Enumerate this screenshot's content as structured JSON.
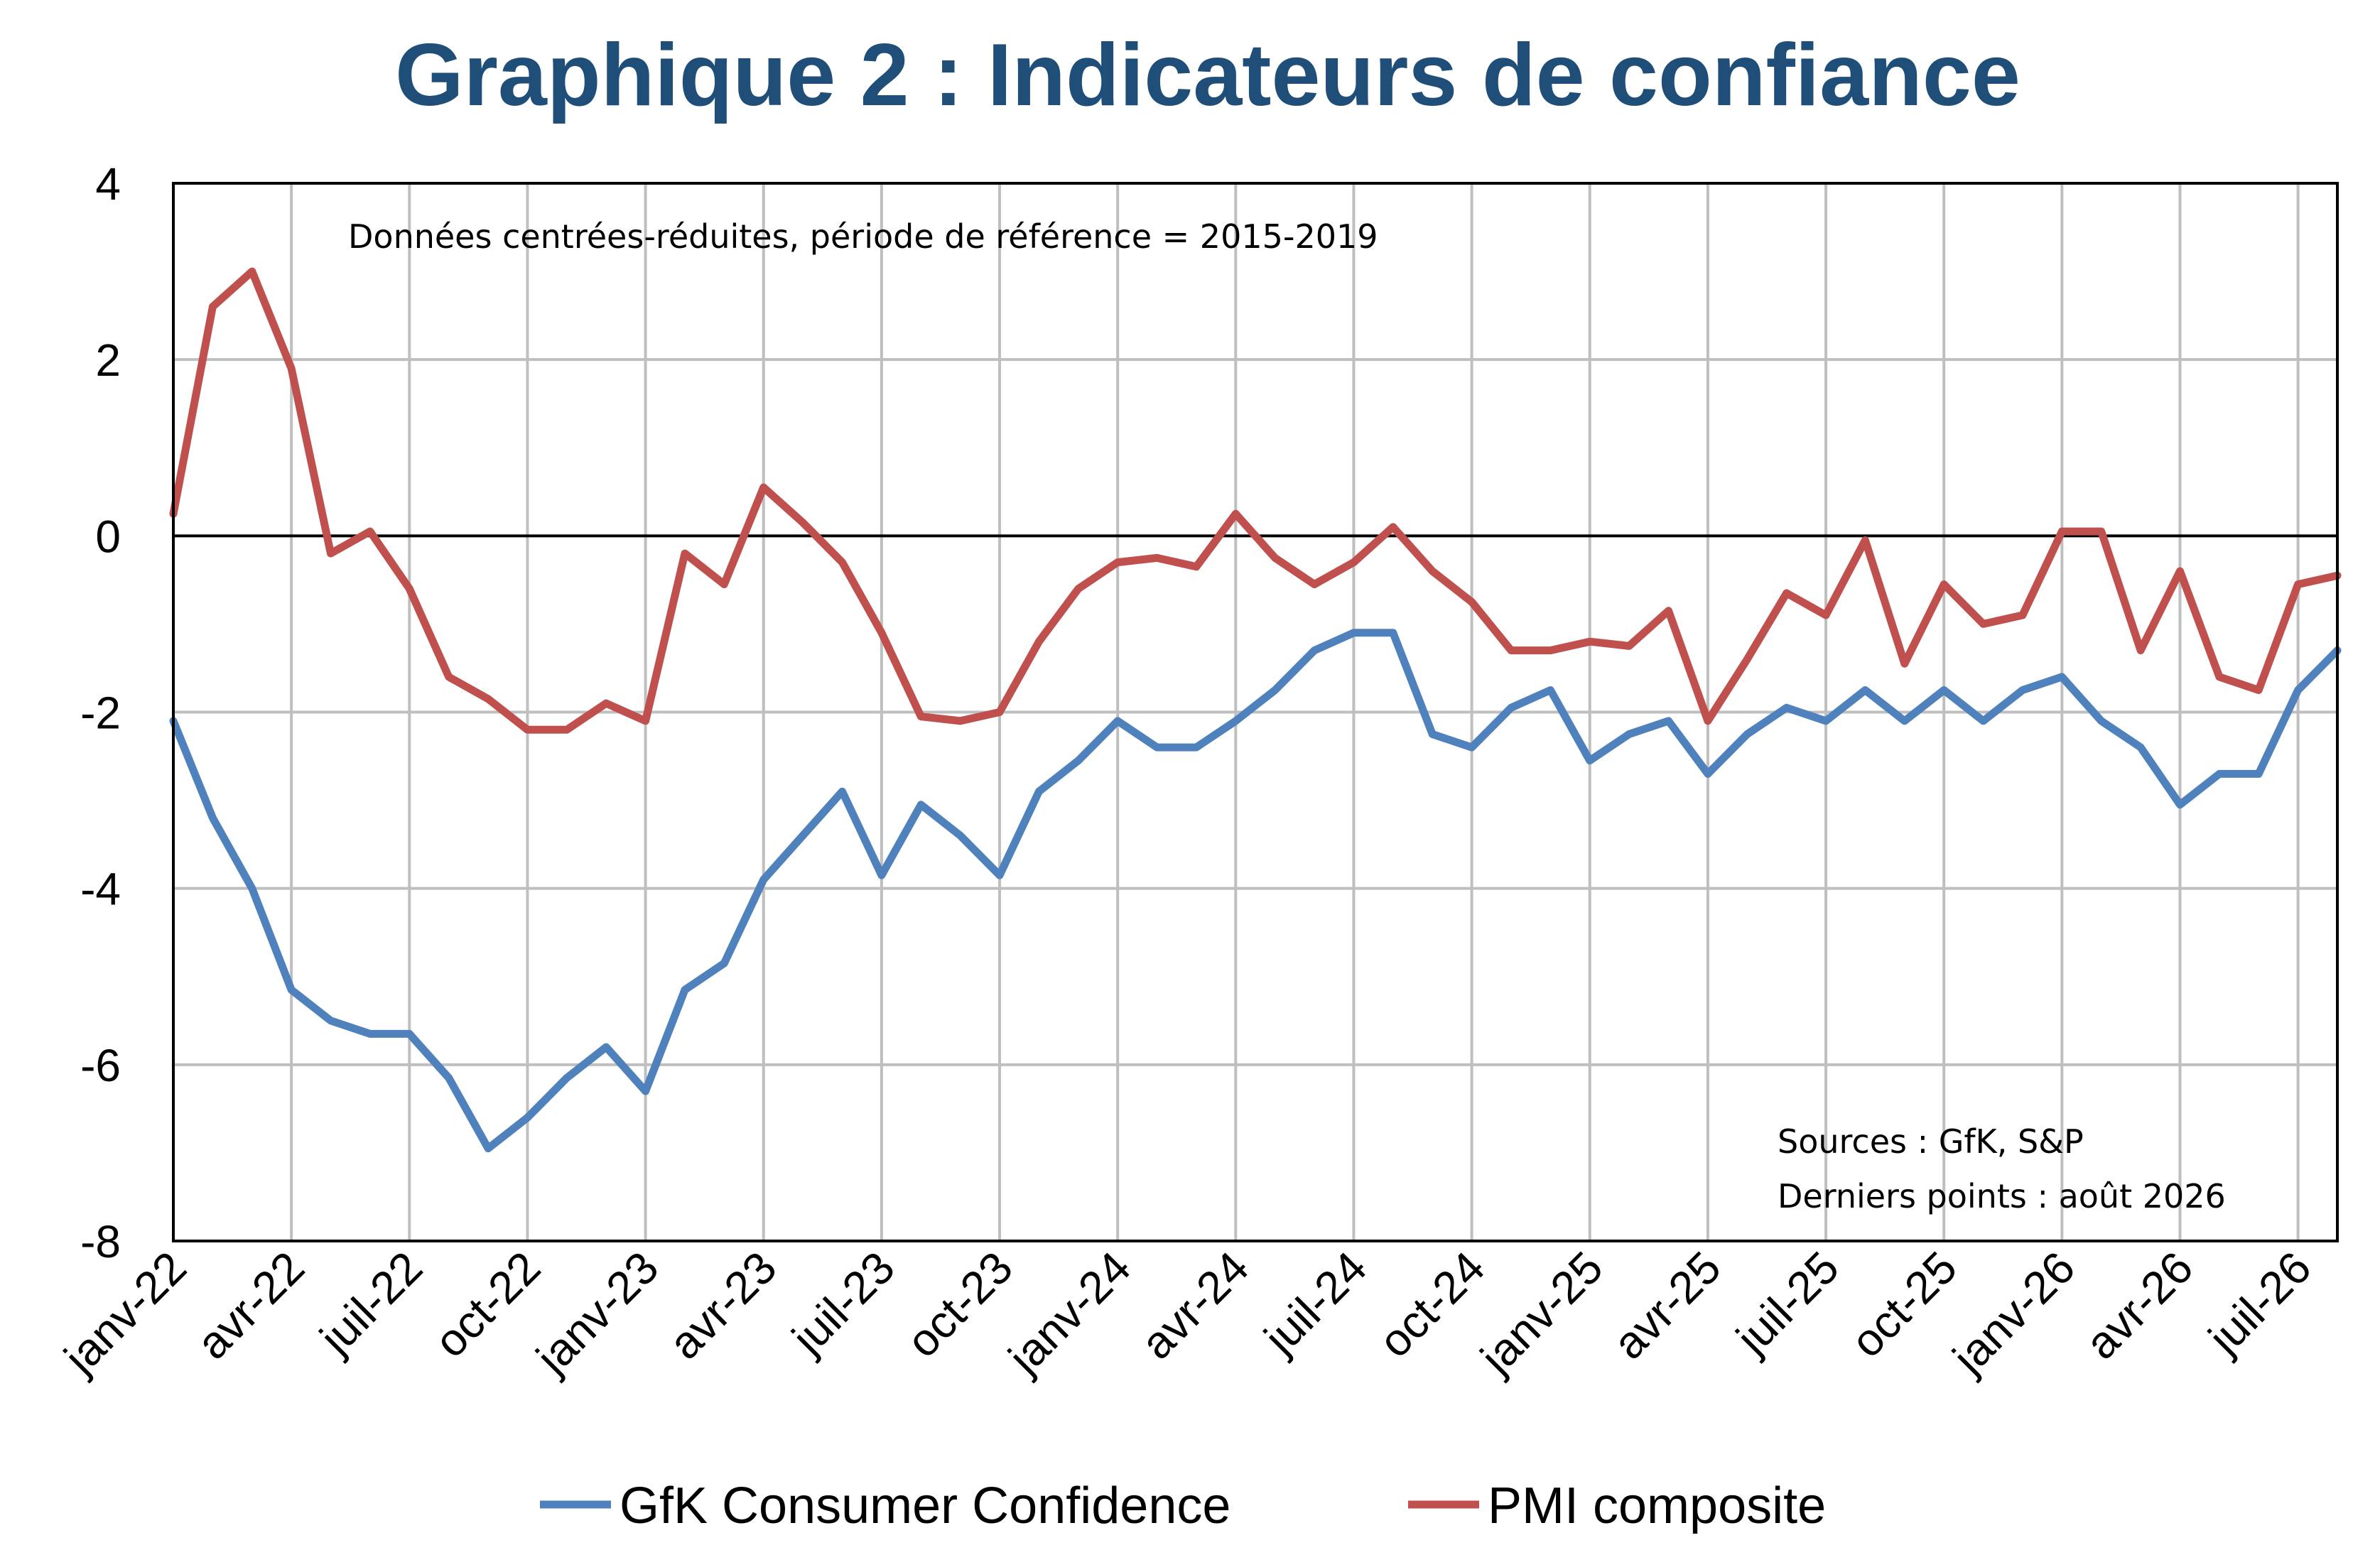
{
  "chart_data": {
    "type": "line",
    "title": "Graphique 2 : Indicateurs de confiance",
    "subtitle": "Données centrées-réduites, période de référence = 2015-2019",
    "sources": "Sources : GfK, S&P",
    "last_points": "Derniers points : août 2026",
    "xlabel": "",
    "ylabel": "",
    "ylim": [
      -8,
      4
    ],
    "yticks": [
      -8,
      -6,
      -4,
      -2,
      0,
      2,
      4
    ],
    "ytick_labels": [
      "-8",
      "-6",
      "-4",
      "-2",
      "0",
      "2",
      "4"
    ],
    "grid": true,
    "legend_position": "bottom",
    "tick_labels": [
      "janv-22",
      "avr-22",
      "juil-22",
      "oct-22",
      "janv-23",
      "avr-23",
      "juil-23",
      "oct-23",
      "janv-24",
      "avr-24",
      "juil-24",
      "oct-24",
      "janv-25",
      "avr-25",
      "juil-25",
      "oct-25",
      "janv-26",
      "avr-26",
      "juil-26"
    ],
    "categories": [
      "janv-22",
      "févr-22",
      "mars-22",
      "avr-22",
      "mai-22",
      "juin-22",
      "juil-22",
      "août-22",
      "sept-22",
      "oct-22",
      "nov-22",
      "déc-22",
      "janv-23",
      "févr-23",
      "mars-23",
      "avr-23",
      "mai-23",
      "juin-23",
      "juil-23",
      "août-23",
      "sept-23",
      "oct-23",
      "nov-23",
      "déc-23",
      "janv-24",
      "févr-24",
      "mars-24",
      "avr-24",
      "mai-24",
      "juin-24",
      "juil-24",
      "août-24",
      "sept-24",
      "oct-24",
      "nov-24",
      "déc-24",
      "janv-25",
      "févr-25",
      "mars-25",
      "avr-25",
      "mai-25",
      "juin-25",
      "juil-25",
      "août-25",
      "sept-25",
      "oct-25",
      "nov-25",
      "déc-25",
      "janv-26",
      "févr-26",
      "mars-26",
      "avr-26",
      "mai-26",
      "juin-26",
      "juil-26",
      "août-26"
    ],
    "series": [
      {
        "name": "GfK Consumer Confidence",
        "color": "#4F81BD",
        "values": [
          -2.1,
          -3.2,
          -4.0,
          -5.15,
          -5.5,
          -5.65,
          -5.65,
          -6.15,
          -6.95,
          -6.6,
          -6.15,
          -5.8,
          -6.3,
          -5.15,
          -4.85,
          -3.9,
          -3.4,
          -2.9,
          -3.85,
          -3.05,
          -3.4,
          -3.85,
          -2.9,
          -2.55,
          -2.1,
          -2.4,
          -2.4,
          -2.1,
          -1.75,
          -1.3,
          -1.1,
          -1.1,
          -2.25,
          -2.4,
          -1.95,
          -1.75,
          -2.55,
          -2.25,
          -2.1,
          -2.7,
          -2.25,
          -1.95,
          -2.1,
          -1.75,
          -2.1,
          -1.75,
          -2.1,
          -1.75,
          -1.6,
          -2.1,
          -2.4,
          -3.05,
          -2.7,
          -2.7,
          -1.75,
          -1.3
        ]
      },
      {
        "name": "PMI composite",
        "color": "#C0504D",
        "values": [
          0.25,
          2.6,
          3.0,
          1.9,
          -0.2,
          0.05,
          -0.6,
          -1.6,
          -1.85,
          -2.2,
          -2.2,
          -1.9,
          -2.1,
          -0.2,
          -0.55,
          0.55,
          0.15,
          -0.3,
          -1.1,
          -2.05,
          -2.1,
          -2.0,
          -1.2,
          -0.6,
          -0.3,
          -0.25,
          -0.35,
          0.25,
          -0.25,
          -0.55,
          -0.3,
          0.1,
          -0.4,
          -0.75,
          -1.3,
          -1.3,
          -1.2,
          -1.25,
          -0.85,
          -2.1,
          -1.4,
          -0.65,
          -0.9,
          -0.05,
          -1.45,
          -0.55,
          -1.0,
          -0.9,
          0.05,
          0.05,
          -1.3,
          -0.4,
          -1.6,
          -1.75,
          -0.55,
          -0.45
        ]
      }
    ]
  }
}
